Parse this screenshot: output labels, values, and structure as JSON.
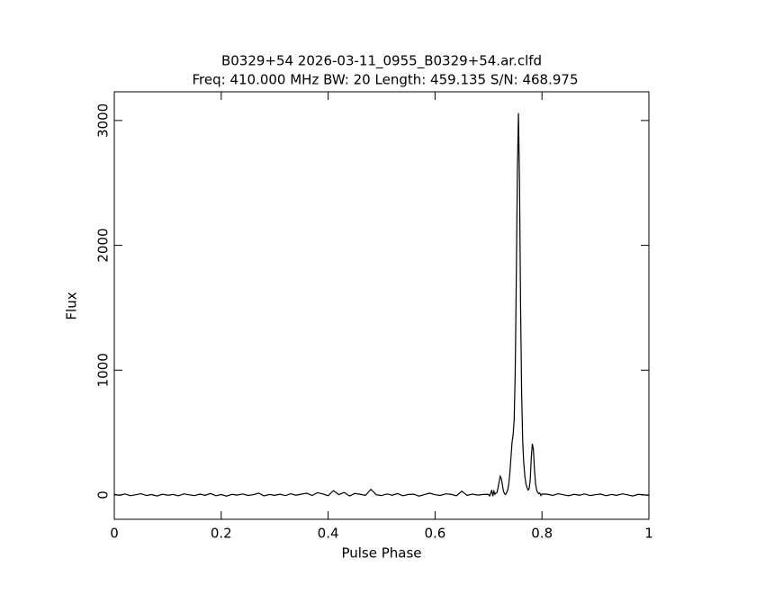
{
  "chart_data": {
    "type": "line",
    "title": "B0329+54 2026-03-11_0955_B0329+54.ar.clfd",
    "subtitle": "Freq: 410.000 MHz BW: 20 Length: 459.135 S/N: 468.975",
    "x_label": "Pulse Phase",
    "y_label": "Flux",
    "color": "#000000",
    "xlim": [
      0,
      1
    ],
    "xticks": [
      0,
      0.2,
      0.4,
      0.6,
      0.8,
      1
    ],
    "ylim": [
      -195,
      3230
    ],
    "yticks": [
      0,
      1000,
      2000,
      3000
    ],
    "x": [
      0,
      0.01,
      0.02,
      0.03,
      0.04,
      0.05,
      0.06,
      0.07,
      0.08,
      0.09,
      0.1,
      0.11,
      0.12,
      0.13,
      0.14,
      0.15,
      0.16,
      0.17,
      0.18,
      0.19,
      0.2,
      0.21,
      0.22,
      0.23,
      0.24,
      0.25,
      0.26,
      0.27,
      0.28,
      0.29,
      0.3,
      0.31,
      0.32,
      0.33,
      0.34,
      0.35,
      0.36,
      0.37,
      0.38,
      0.39,
      0.4,
      0.41,
      0.42,
      0.43,
      0.44,
      0.45,
      0.46,
      0.47,
      0.48,
      0.49,
      0.5,
      0.51,
      0.52,
      0.53,
      0.54,
      0.55,
      0.56,
      0.57,
      0.58,
      0.59,
      0.6,
      0.61,
      0.62,
      0.63,
      0.64,
      0.65,
      0.66,
      0.67,
      0.68,
      0.69,
      0.7,
      0.702,
      0.704,
      0.706,
      0.708,
      0.71,
      0.712,
      0.714,
      0.716,
      0.718,
      0.72,
      0.722,
      0.724,
      0.726,
      0.728,
      0.73,
      0.732,
      0.734,
      0.736,
      0.738,
      0.74,
      0.742,
      0.744,
      0.746,
      0.748,
      0.75,
      0.752,
      0.754,
      0.756,
      0.758,
      0.76,
      0.762,
      0.764,
      0.766,
      0.768,
      0.77,
      0.772,
      0.774,
      0.776,
      0.778,
      0.78,
      0.782,
      0.784,
      0.786,
      0.788,
      0.79,
      0.792,
      0.794,
      0.796,
      0.798,
      0.8,
      0.81,
      0.82,
      0.83,
      0.84,
      0.85,
      0.86,
      0.87,
      0.88,
      0.89,
      0.9,
      0.91,
      0.92,
      0.93,
      0.94,
      0.95,
      0.96,
      0.97,
      0.98,
      0.99,
      1
    ],
    "values": [
      5,
      -3,
      8,
      -6,
      2,
      10,
      -4,
      3,
      -8,
      6,
      -2,
      4,
      -7,
      9,
      1,
      -5,
      7,
      -3,
      12,
      -6,
      3,
      -9,
      5,
      -1,
      8,
      -4,
      2,
      15,
      -7,
      4,
      -3,
      6,
      -5,
      10,
      -2,
      7,
      14,
      -4,
      18,
      8,
      -6,
      35,
      3,
      20,
      -8,
      12,
      5,
      -3,
      45,
      2,
      -5,
      8,
      -2,
      11,
      -7,
      4,
      6,
      -9,
      3,
      15,
      2,
      -4,
      9,
      5,
      -6,
      30,
      -3,
      7,
      -1,
      4,
      5,
      -8,
      12,
      40,
      -10,
      30,
      5,
      15,
      20,
      60,
      110,
      150,
      130,
      80,
      30,
      10,
      5,
      20,
      40,
      90,
      180,
      300,
      420,
      480,
      600,
      1000,
      1750,
      2600,
      3060,
      2500,
      1500,
      800,
      420,
      250,
      150,
      90,
      60,
      40,
      50,
      120,
      300,
      410,
      360,
      200,
      90,
      40,
      20,
      10,
      15,
      -5,
      8,
      6,
      -4,
      10,
      2,
      -7,
      5,
      -2,
      8,
      -5,
      3,
      7,
      -6,
      4,
      -3,
      9,
      1,
      -8,
      5,
      2,
      -4
    ]
  }
}
